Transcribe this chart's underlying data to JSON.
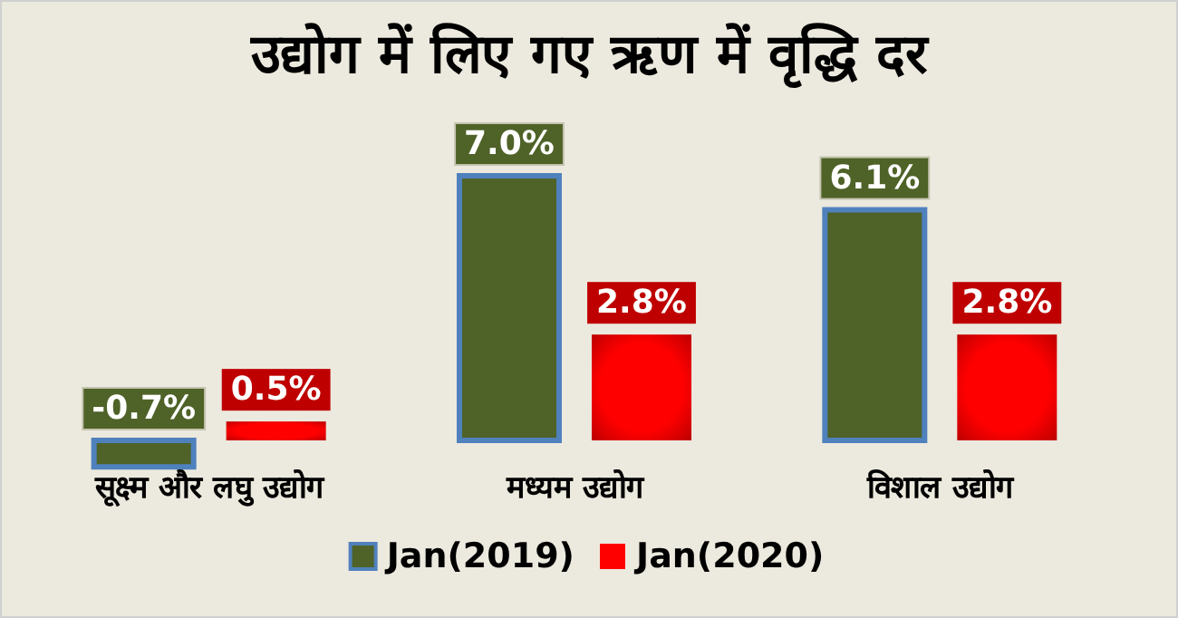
{
  "chart_data": {
    "type": "bar",
    "title": "उद्योग में लिए गए ऋण में वृद्धि दर",
    "categories": [
      "सूक्ष्म और लघु उद्योग",
      "मध्यम उद्योग",
      "विशाल उद्योग"
    ],
    "series": [
      {
        "name": "Jan(2019)",
        "color": "#4f6228",
        "values": [
          -0.7,
          7.0,
          6.1
        ],
        "value_labels": [
          "-0.7%",
          "7.0%",
          "6.1%"
        ]
      },
      {
        "name": "Jan(2020)",
        "color": "#ff0000",
        "values": [
          0.5,
          2.8,
          2.8
        ],
        "value_labels": [
          "0.5%",
          "2.8%",
          "2.8%"
        ]
      }
    ],
    "legend": "bottom"
  }
}
